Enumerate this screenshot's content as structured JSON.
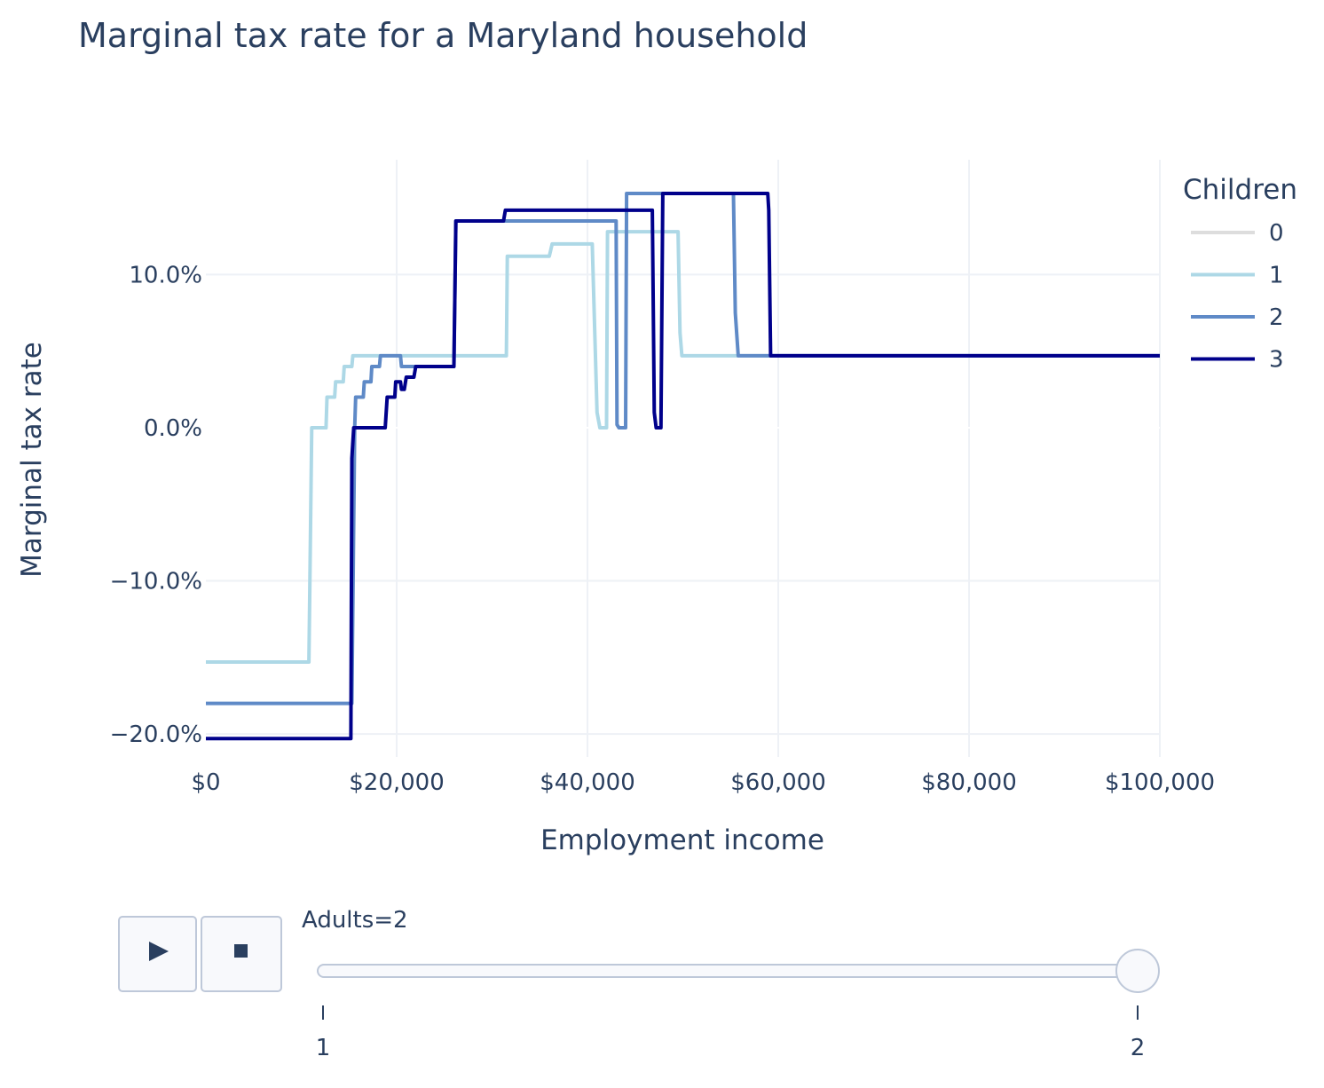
{
  "chart_data": {
    "type": "line",
    "title": "Marginal tax rate for a Maryland household",
    "xlabel": "Employment income",
    "ylabel": "Marginal tax rate",
    "xlim": [
      0,
      100000
    ],
    "ylim": [
      -21.5,
      17.5
    ],
    "x_ticks": [
      0,
      20000,
      40000,
      60000,
      80000,
      100000
    ],
    "x_tick_labels": [
      "$0",
      "$20,000",
      "$40,000",
      "$60,000",
      "$80,000",
      "$100,000"
    ],
    "y_ticks": [
      -20,
      -10,
      0,
      10
    ],
    "y_tick_labels": [
      "−20.0%",
      "−10.0%",
      "0.0%",
      "10.0%"
    ],
    "grid": true,
    "legend": {
      "title": "Children",
      "placement": "top-right"
    },
    "series": [
      {
        "name": "0",
        "color": "#dddddd",
        "hidden": true,
        "points": []
      },
      {
        "name": "1",
        "color": "#add8e6",
        "points": [
          [
            0,
            -15.3
          ],
          [
            10800,
            -15.3
          ],
          [
            11100,
            0
          ],
          [
            12600,
            0
          ],
          [
            12700,
            2
          ],
          [
            13500,
            2
          ],
          [
            13600,
            3
          ],
          [
            14400,
            3
          ],
          [
            14500,
            4
          ],
          [
            15300,
            4
          ],
          [
            15400,
            4.7
          ],
          [
            31500,
            4.7
          ],
          [
            31600,
            11.2
          ],
          [
            31800,
            11.2
          ],
          [
            36000,
            11.2
          ],
          [
            36300,
            12
          ],
          [
            36500,
            12
          ],
          [
            40500,
            12
          ],
          [
            41000,
            1
          ],
          [
            41300,
            0
          ],
          [
            42000,
            0
          ],
          [
            42100,
            12.8
          ],
          [
            49500,
            12.8
          ],
          [
            49700,
            6.2
          ],
          [
            49900,
            4.7
          ],
          [
            100000,
            4.7
          ]
        ]
      },
      {
        "name": "2",
        "color": "#5f8ac7",
        "points": [
          [
            0,
            -18
          ],
          [
            15300,
            -18
          ],
          [
            15600,
            0
          ],
          [
            15700,
            2
          ],
          [
            16500,
            2
          ],
          [
            16600,
            3
          ],
          [
            17300,
            3
          ],
          [
            17400,
            4
          ],
          [
            18200,
            4
          ],
          [
            18300,
            4.7
          ],
          [
            20400,
            4.7
          ],
          [
            20500,
            4
          ],
          [
            22300,
            4
          ],
          [
            26000,
            4
          ],
          [
            26200,
            13.5
          ],
          [
            27000,
            13.5
          ],
          [
            43000,
            13.5
          ],
          [
            43100,
            0.2
          ],
          [
            43300,
            0
          ],
          [
            44000,
            0
          ],
          [
            44100,
            15.3
          ],
          [
            55300,
            15.3
          ],
          [
            55500,
            7.5
          ],
          [
            55800,
            4.7
          ],
          [
            100000,
            4.7
          ]
        ]
      },
      {
        "name": "3",
        "color": "#00008b",
        "points": [
          [
            0,
            -20.3
          ],
          [
            15200,
            -20.3
          ],
          [
            15300,
            -2
          ],
          [
            15500,
            0
          ],
          [
            18800,
            0
          ],
          [
            19000,
            2
          ],
          [
            19800,
            2
          ],
          [
            19900,
            3
          ],
          [
            20400,
            3
          ],
          [
            20500,
            2.5
          ],
          [
            20800,
            2.5
          ],
          [
            21000,
            3.3
          ],
          [
            21800,
            3.3
          ],
          [
            22000,
            4
          ],
          [
            26000,
            4
          ],
          [
            26200,
            13.5
          ],
          [
            31200,
            13.5
          ],
          [
            31400,
            14.2
          ],
          [
            46800,
            14.2
          ],
          [
            47000,
            1
          ],
          [
            47200,
            0
          ],
          [
            47700,
            0
          ],
          [
            47900,
            15.3
          ],
          [
            58900,
            15.3
          ],
          [
            59000,
            14.2
          ],
          [
            59200,
            4.7
          ],
          [
            100000,
            4.7
          ]
        ]
      }
    ]
  },
  "slider": {
    "current_label": "Adults=2",
    "values": [
      "1",
      "2"
    ],
    "selected_index": 1
  },
  "controls": {
    "play_icon": "play-icon",
    "stop_icon": "stop-icon"
  }
}
